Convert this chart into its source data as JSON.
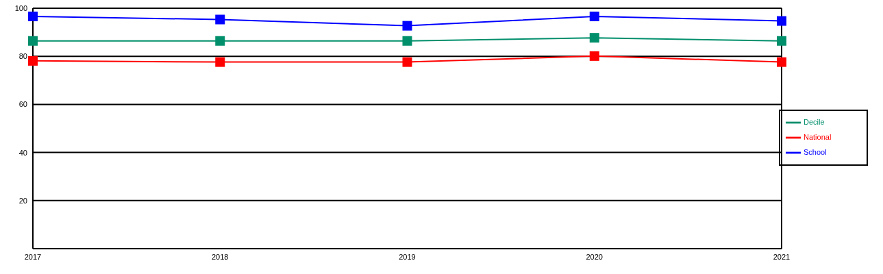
{
  "chart_data": {
    "type": "line",
    "categories": [
      "2017",
      "2018",
      "2019",
      "2020",
      "2021"
    ],
    "series": [
      {
        "name": "School",
        "color": "#0000ff",
        "values": [
          96.6,
          95.3,
          92.7,
          96.6,
          94.7
        ]
      },
      {
        "name": "National",
        "color": "#ff0000",
        "values": [
          78.1,
          77.6,
          77.6,
          80.1,
          77.6
        ]
      },
      {
        "name": "Decile",
        "color": "#008f6b",
        "values": [
          86.4,
          86.4,
          86.4,
          87.7,
          86.4
        ]
      }
    ],
    "ylim": [
      0,
      100
    ],
    "yticks": [
      20,
      40,
      60,
      80,
      100
    ],
    "grid": "y",
    "legend": "right",
    "marker": "square",
    "line_style": "solid"
  }
}
